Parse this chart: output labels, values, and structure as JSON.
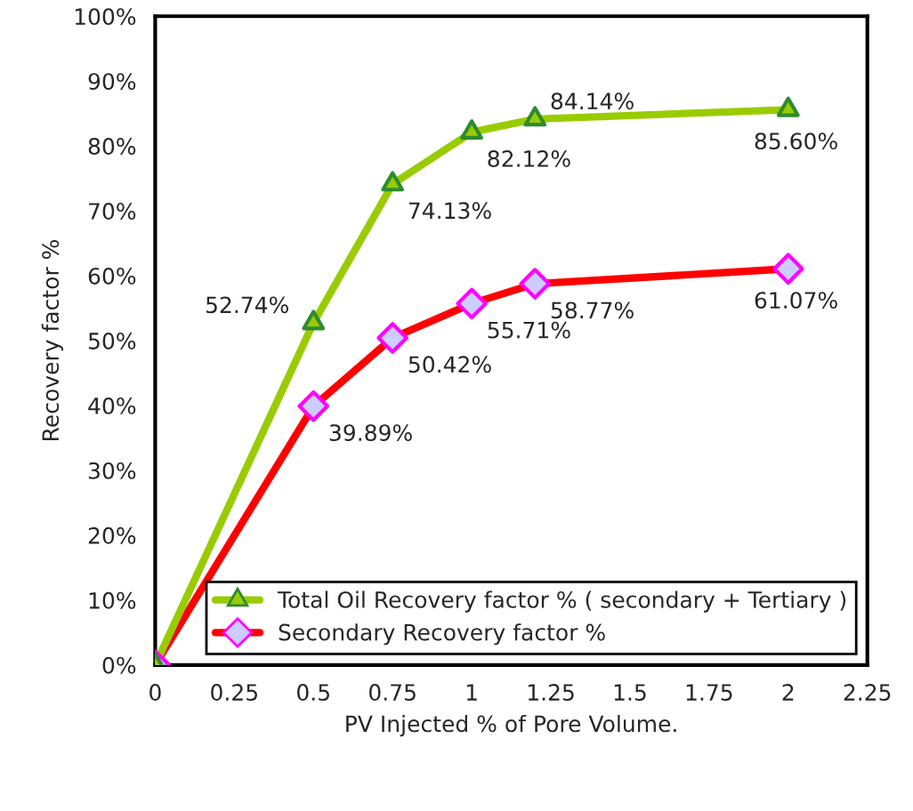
{
  "chart_data": {
    "type": "line",
    "xlabel": "PV Injected % of Pore Volume.",
    "ylabel": "Recovery factor %",
    "x": [
      0,
      0.5,
      0.75,
      1,
      1.2,
      2
    ],
    "series": [
      {
        "name": "Total Oil Recovery factor % ( secondary + Tertiary )",
        "color": "#99cc00",
        "marker": "triangle",
        "values": [
          0,
          52.74,
          74.13,
          82.12,
          84.14,
          85.6
        ],
        "value_labels": [
          null,
          "52.74%",
          "74.13%",
          "82.12%",
          "84.14%",
          "85.60%"
        ]
      },
      {
        "name": "Secondary Recovery factor %",
        "color": "#ff0000",
        "marker": "diamond",
        "values": [
          0,
          39.89,
          50.42,
          55.71,
          58.77,
          61.07
        ],
        "value_labels": [
          null,
          "39.89%",
          "50.42%",
          "55.71%",
          "58.77%",
          "61.07%"
        ]
      }
    ],
    "xlim": [
      0,
      2.25
    ],
    "xticks": [
      0,
      0.25,
      0.5,
      0.75,
      1,
      1.25,
      1.5,
      1.75,
      2,
      2.25
    ],
    "ylim": [
      0,
      100
    ],
    "yticks": [
      {
        "value": 0,
        "label": "0%"
      },
      {
        "value": 10,
        "label": "10%"
      },
      {
        "value": 20,
        "label": "20%"
      },
      {
        "value": 30,
        "label": "30%"
      },
      {
        "value": 40,
        "label": "40%"
      },
      {
        "value": 50,
        "label": "50%"
      },
      {
        "value": 60,
        "label": "60%"
      },
      {
        "value": 70,
        "label": "70%"
      },
      {
        "value": 80,
        "label": "80%"
      },
      {
        "value": 90,
        "label": "90%"
      },
      {
        "value": 100,
        "label": "100%"
      }
    ],
    "grid": false,
    "legend": "bottom right",
    "line_style": "solid"
  }
}
